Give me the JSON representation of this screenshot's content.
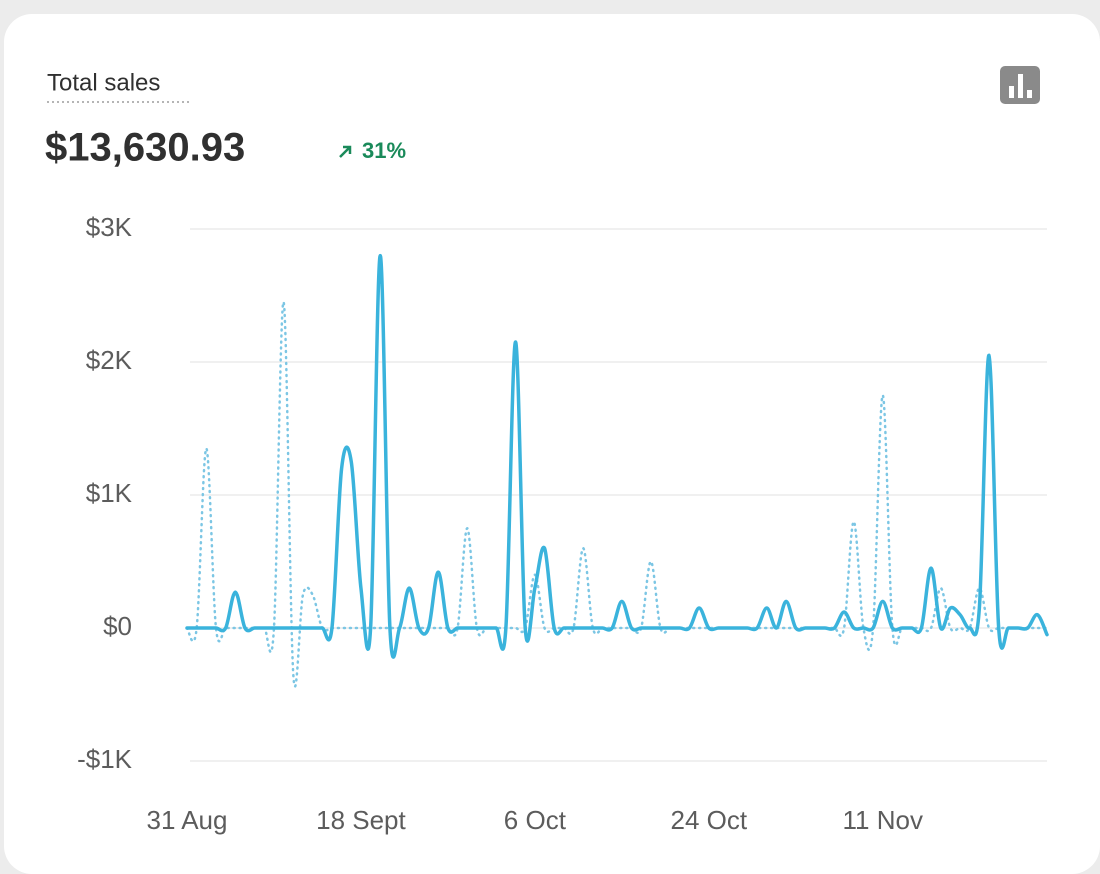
{
  "chart_data": {
    "type": "line",
    "title": "Total sales",
    "total": "$13,630.93",
    "change": "31%",
    "categories": [
      "31 Aug",
      null,
      null,
      null,
      null,
      null,
      null,
      null,
      null,
      null,
      null,
      null,
      null,
      null,
      null,
      null,
      null,
      null,
      "18 Sept",
      null,
      null,
      null,
      null,
      null,
      null,
      null,
      null,
      null,
      null,
      null,
      null,
      null,
      null,
      null,
      null,
      null,
      "6 Oct",
      null,
      null,
      null,
      null,
      null,
      null,
      null,
      null,
      null,
      null,
      null,
      null,
      null,
      null,
      null,
      null,
      null,
      "24 Oct",
      null,
      null,
      null,
      null,
      null,
      null,
      null,
      null,
      null,
      null,
      null,
      null,
      null,
      null,
      null,
      null,
      null,
      "11 Nov",
      null,
      null,
      null,
      null,
      null,
      null,
      null,
      null,
      null,
      null,
      null,
      null,
      null,
      null,
      null,
      null,
      null
    ],
    "series": [
      {
        "color": "#3ab3dc",
        "style": "solid",
        "values": [
          0,
          0,
          0,
          0,
          0,
          270,
          0,
          0,
          0,
          0,
          0,
          0,
          0,
          0,
          0,
          0,
          1200,
          1250,
          300,
          0,
          2800,
          0,
          0,
          300,
          0,
          0,
          420,
          0,
          0,
          0,
          0,
          0,
          0,
          0,
          2150,
          0,
          300,
          600,
          0,
          0,
          0,
          0,
          0,
          0,
          0,
          200,
          0,
          0,
          0,
          0,
          0,
          0,
          0,
          150,
          0,
          0,
          0,
          0,
          0,
          0,
          150,
          0,
          200,
          0,
          0,
          0,
          0,
          0,
          120,
          0,
          0,
          0,
          200,
          0,
          0,
          0,
          0,
          450,
          0,
          150,
          100,
          0,
          150,
          2050,
          0,
          0,
          0,
          0,
          100,
          -50
        ]
      },
      {
        "color": "#7cc6e4",
        "style": "dotted",
        "values": [
          0,
          0,
          1350,
          0,
          0,
          0,
          0,
          0,
          0,
          0,
          2450,
          -350,
          250,
          250,
          0,
          0,
          0,
          0,
          0,
          0,
          0,
          0,
          0,
          0,
          0,
          0,
          0,
          0,
          0,
          750,
          0,
          0,
          0,
          0,
          0,
          0,
          400,
          0,
          0,
          0,
          0,
          600,
          0,
          0,
          0,
          0,
          0,
          0,
          500,
          0,
          0,
          0,
          0,
          0,
          0,
          0,
          0,
          0,
          0,
          0,
          0,
          0,
          0,
          0,
          0,
          0,
          0,
          0,
          0,
          800,
          0,
          0,
          1750,
          0,
          0,
          0,
          0,
          0,
          300,
          0,
          0,
          0,
          300,
          0,
          0,
          0,
          0,
          0,
          0,
          0
        ]
      }
    ],
    "ylim": [
      -1000,
      3000
    ],
    "yticks": [
      {
        "value": -1000,
        "label": "-$1K"
      },
      {
        "value": 0,
        "label": "$0"
      },
      {
        "value": 1000,
        "label": "$1K"
      },
      {
        "value": 2000,
        "label": "$2K"
      },
      {
        "value": 3000,
        "label": "$3K"
      }
    ],
    "grid": true
  }
}
